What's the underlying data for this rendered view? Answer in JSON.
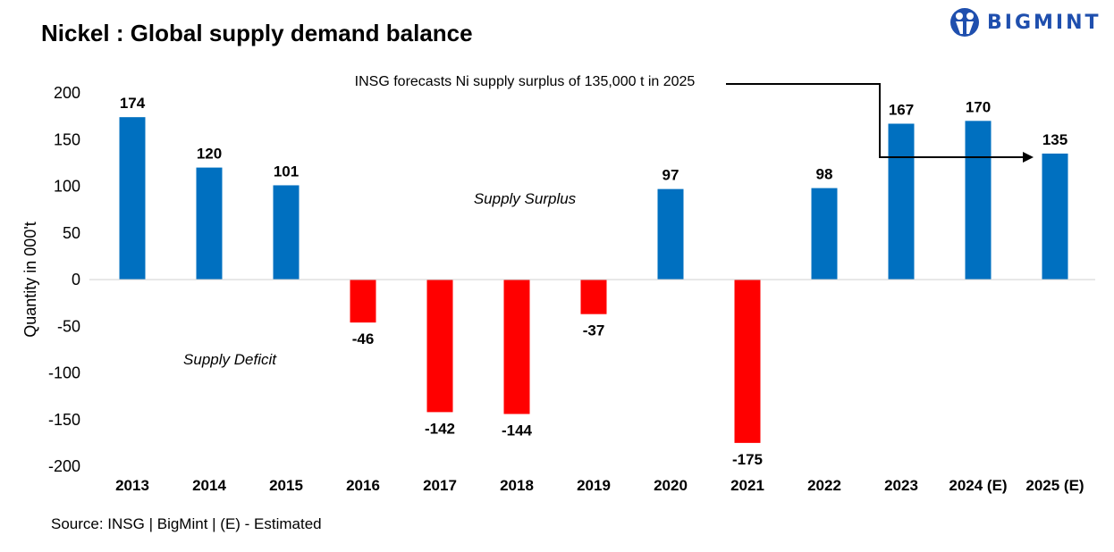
{
  "title": "Nickel : Global supply demand balance",
  "logo": {
    "text": "BIGMINT"
  },
  "source": "Source: INSG | BigMint | (E) - Estimated",
  "chart_data": {
    "type": "bar",
    "title": "Nickel : Global supply demand balance",
    "ylabel": "Quantity in 000't",
    "xlabel": "",
    "ylim": [
      -200,
      200
    ],
    "yticks": [
      200,
      150,
      100,
      50,
      0,
      -50,
      -100,
      -150,
      -200
    ],
    "categories": [
      "2013",
      "2014",
      "2015",
      "2016",
      "2017",
      "2018",
      "2019",
      "2020",
      "2021",
      "2022",
      "2023",
      "2024 (E)",
      "2025 (E)"
    ],
    "values": [
      174,
      120,
      101,
      -46,
      -142,
      -144,
      -37,
      97,
      -175,
      98,
      167,
      170,
      135
    ],
    "colors": {
      "positive": "#0070C0",
      "negative": "#FF0000"
    },
    "grid": false,
    "annotations": {
      "forecast": "INSG forecasts Ni  supply surplus of 135,000 t in 2025",
      "surplus": "Supply Surplus",
      "deficit": "Supply Deficit"
    }
  }
}
